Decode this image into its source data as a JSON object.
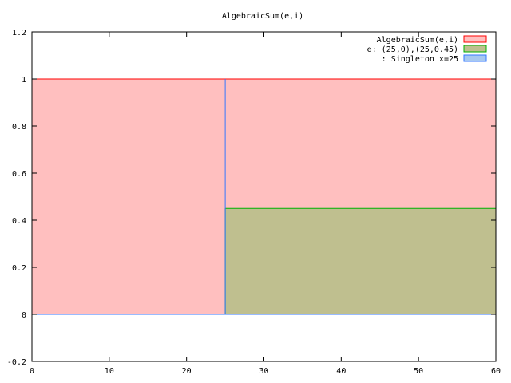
{
  "chart_data": {
    "type": "area",
    "title": "AlgebraicSum(e,i)",
    "xlabel": "",
    "ylabel": "",
    "xlim": [
      0,
      60
    ],
    "ylim": [
      -0.2,
      1.2
    ],
    "xticks": [
      0,
      10,
      20,
      30,
      40,
      50,
      60
    ],
    "yticks": [
      -0.2,
      0,
      0.2,
      0.4,
      0.6,
      0.8,
      1,
      1.2
    ],
    "xtick_labels": [
      "0",
      "10",
      "20",
      "30",
      "40",
      "50",
      "60"
    ],
    "ytick_labels": [
      "-0.2",
      "0",
      "0.2",
      "0.4",
      "0.6",
      "0.8",
      "1",
      "1.2"
    ],
    "grid": false,
    "legend_position": "top-right",
    "series": [
      {
        "name": "AlgebraicSum(e,i)",
        "kind": "filled",
        "color": "#ff0000",
        "fill": "#ffbfbf",
        "points": [
          [
            0,
            1
          ],
          [
            60,
            1
          ]
        ]
      },
      {
        "name": "e: (25,0),(25,0.45)",
        "kind": "filled",
        "color": "#00b000",
        "fill": "#bfbf8f",
        "points": [
          [
            25,
            0.45
          ],
          [
            60,
            0.45
          ]
        ]
      },
      {
        "name": ": Singleton x=25",
        "kind": "line",
        "color": "#3377ff",
        "fill": "#a7c8f0",
        "points": [
          [
            0,
            0
          ],
          [
            25,
            0
          ],
          [
            25,
            1
          ],
          [
            25,
            0
          ],
          [
            60,
            0
          ]
        ]
      }
    ]
  }
}
